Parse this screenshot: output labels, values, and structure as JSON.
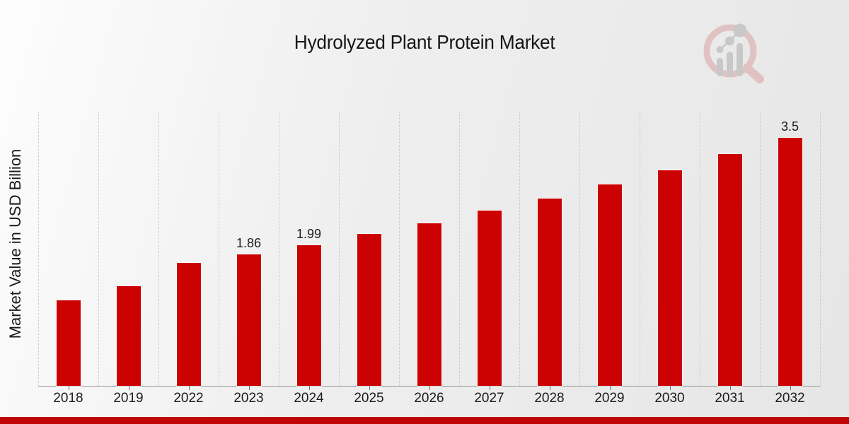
{
  "branding": {
    "logo_icon": "magnifier-bar-chart-logo",
    "logo_ring_color": "#d89c9c",
    "logo_bars_color": "#a8a8a8"
  },
  "footer": {
    "accent_bar_color": "#c10505"
  },
  "chart_data": {
    "type": "bar",
    "title": "Hydrolyzed Plant Protein Market",
    "xlabel": "",
    "ylabel": "Market Value in USD Billion",
    "categories": [
      "2018",
      "2019",
      "2022",
      "2023",
      "2024",
      "2025",
      "2026",
      "2027",
      "2028",
      "2029",
      "2030",
      "2031",
      "2032"
    ],
    "values": [
      1.21,
      1.41,
      1.74,
      1.86,
      1.99,
      2.14,
      2.29,
      2.47,
      2.64,
      2.84,
      3.04,
      3.27,
      3.5
    ],
    "data_labels": {
      "2023": "1.86",
      "2024": "1.99",
      "2032": "3.5"
    },
    "ylim": [
      0,
      3.86
    ],
    "bar_color": "#cc0202",
    "grid": "vertical-dotted",
    "legend": "none"
  }
}
